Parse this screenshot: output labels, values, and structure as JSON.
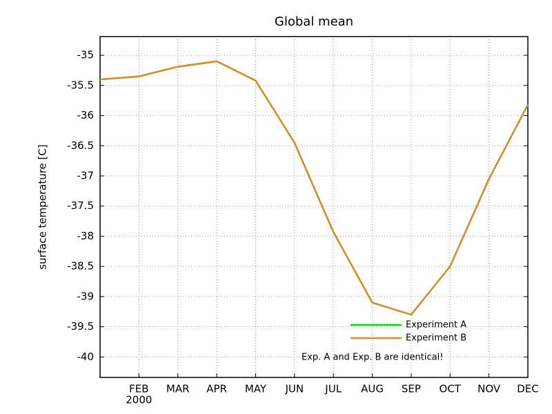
{
  "chart_data": {
    "type": "line",
    "title": "Global mean",
    "y_label": "surface temperature [C]",
    "categories": [
      null,
      "FEB",
      "MAR",
      "APR",
      "MAY",
      "JUN",
      "JUL",
      "AUG",
      "SEP",
      "OCT",
      "NOV",
      "DEC"
    ],
    "year_label": "2000",
    "series": [
      {
        "name": "Experiment A",
        "color": "#00dd00",
        "values": [
          -35.4,
          -35.35,
          -35.19,
          -35.1,
          -35.42,
          -36.45,
          -37.93,
          -39.1,
          -39.3,
          -38.5,
          -37.05,
          -35.82
        ]
      },
      {
        "name": "Experiment B",
        "color": "#e08a2a",
        "values": [
          -35.4,
          -35.35,
          -35.19,
          -35.1,
          -35.42,
          -36.45,
          -37.93,
          -39.1,
          -39.3,
          -38.5,
          -37.05,
          -35.82
        ]
      }
    ],
    "annotation": "Exp. A and Exp. B are identical!",
    "ylim": [
      -40.34,
      -34.69
    ],
    "yticks": [
      -35,
      -35.5,
      -36,
      -36.5,
      -37,
      -37.5,
      -38,
      -38.5,
      -39,
      -39.5,
      -40
    ],
    "grid": true,
    "legend": "lower right"
  }
}
